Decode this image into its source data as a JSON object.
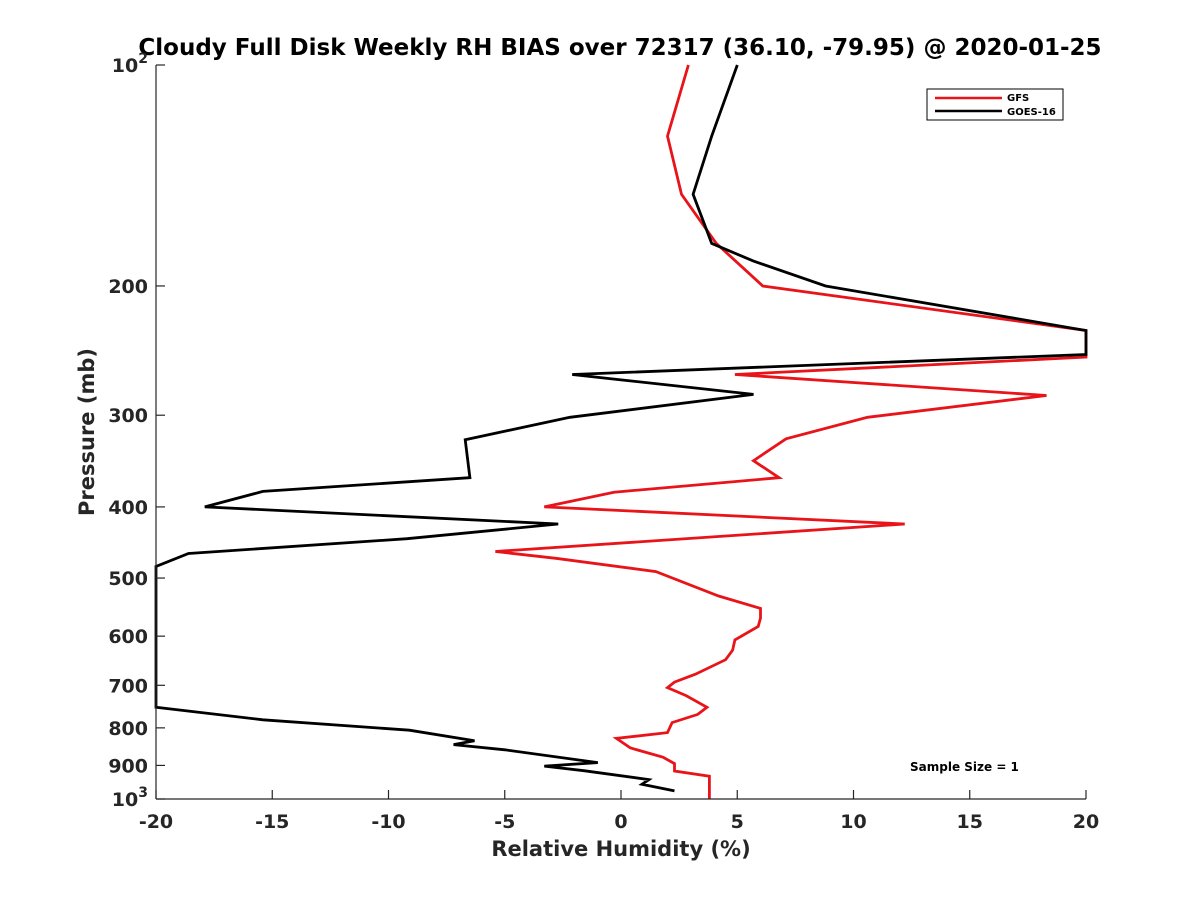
{
  "chart_data": {
    "type": "line",
    "title": "Cloudy Full Disk Weekly RH BIAS over 72317 (36.10, -79.95) @ 2020-01-25",
    "xlabel": "Relative Humidity (%)",
    "ylabel": "Pressure (mb)",
    "xlim": [
      -20,
      20
    ],
    "ylim": [
      100,
      1000
    ],
    "y_scale": "log",
    "y_reversed": true,
    "x_ticks": [
      "-20",
      "-15",
      "-10",
      "-5",
      "0",
      "5",
      "10",
      "15",
      "20"
    ],
    "y_ticks": [
      {
        "value": 100,
        "base": "10",
        "exp": "2"
      },
      {
        "value": 200,
        "label": "200"
      },
      {
        "value": 300,
        "label": "300"
      },
      {
        "value": 400,
        "label": "400"
      },
      {
        "value": 500,
        "label": "500"
      },
      {
        "value": 600,
        "label": "600"
      },
      {
        "value": 700,
        "label": "700"
      },
      {
        "value": 800,
        "label": "800"
      },
      {
        "value": 900,
        "label": "900"
      },
      {
        "value": 1000,
        "base": "10",
        "exp": "3"
      }
    ],
    "legend_position": "top-right",
    "annotation": "Sample Size = 1",
    "series": [
      {
        "name": "GFS",
        "color": "#e8141a",
        "points": [
          [
            2.9,
            100
          ],
          [
            2.0,
            125
          ],
          [
            2.6,
            150
          ],
          [
            4.1,
            175
          ],
          [
            6.1,
            200
          ],
          [
            20.0,
            230
          ],
          [
            20.0,
            250
          ],
          [
            4.9,
            264
          ],
          [
            18.3,
            282
          ],
          [
            10.6,
            302
          ],
          [
            7.1,
            323
          ],
          [
            5.7,
            346
          ],
          [
            6.8,
            365
          ],
          [
            -0.3,
            382
          ],
          [
            -3.3,
            400
          ],
          [
            12.2,
            422
          ],
          [
            -5.4,
            460
          ],
          [
            -2.8,
            470
          ],
          [
            1.5,
            490
          ],
          [
            4.2,
            529
          ],
          [
            6.0,
            550
          ],
          [
            6.0,
            567
          ],
          [
            5.9,
            582
          ],
          [
            4.9,
            607
          ],
          [
            4.8,
            627
          ],
          [
            4.5,
            646
          ],
          [
            3.2,
            676
          ],
          [
            2.3,
            693
          ],
          [
            2.0,
            705
          ],
          [
            2.8,
            723
          ],
          [
            3.7,
            750
          ],
          [
            3.3,
            767
          ],
          [
            2.2,
            787
          ],
          [
            2.0,
            812
          ],
          [
            -0.2,
            827
          ],
          [
            0.4,
            852
          ],
          [
            1.8,
            877
          ],
          [
            2.3,
            895
          ],
          [
            2.3,
            916
          ],
          [
            3.8,
            931
          ],
          [
            3.8,
            1000
          ]
        ]
      },
      {
        "name": "GOES-16",
        "color": "#000000",
        "points": [
          [
            5.0,
            100
          ],
          [
            3.9,
            125
          ],
          [
            3.1,
            150
          ],
          [
            3.9,
            175
          ],
          [
            5.7,
            185
          ],
          [
            8.8,
            200
          ],
          [
            20.0,
            230
          ],
          [
            20.0,
            248
          ],
          [
            -2.1,
            264
          ],
          [
            5.7,
            281
          ],
          [
            -2.2,
            302
          ],
          [
            -6.7,
            324
          ],
          [
            -6.5,
            365
          ],
          [
            -15.4,
            381
          ],
          [
            -17.9,
            400
          ],
          [
            -2.7,
            422
          ],
          [
            -9.2,
            442
          ],
          [
            -18.6,
            463
          ],
          [
            -20.0,
            482
          ],
          [
            -20.0,
            750
          ],
          [
            -15.4,
            780
          ],
          [
            -9.1,
            806
          ],
          [
            -6.3,
            833
          ],
          [
            -7.2,
            843
          ],
          [
            -5.0,
            857
          ],
          [
            -1.0,
            892
          ],
          [
            -3.3,
            902
          ],
          [
            -1.6,
            915
          ],
          [
            1.2,
            941
          ],
          [
            0.9,
            955
          ],
          [
            2.3,
            975
          ]
        ]
      }
    ]
  }
}
